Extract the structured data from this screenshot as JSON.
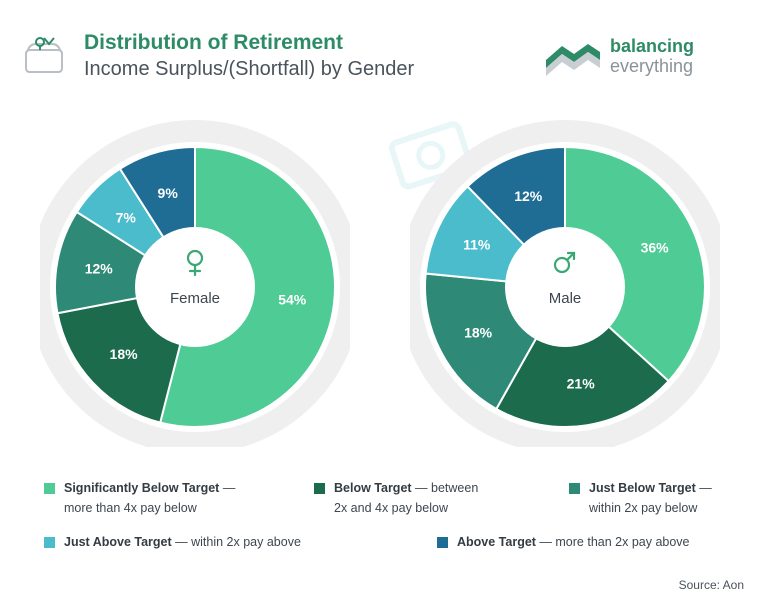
{
  "header": {
    "title": "Distribution of Retirement",
    "subtitle": "Income Surplus/(Shortfall) by Gender",
    "icon": "wallet-icon"
  },
  "brand": {
    "name": "balancing",
    "tagline": "everything",
    "logo": "balancing-everything-logo"
  },
  "colors": {
    "significantly_below": "#4fcb95",
    "below": "#1b6b4c",
    "just_below": "#2e8a77",
    "just_above": "#4bbccb",
    "above": "#1f6c94",
    "ring": "#efefef",
    "title": "#2e8b68"
  },
  "chart_data": [
    {
      "type": "pie",
      "center_label": "Female",
      "center_icon": "female-symbol-icon",
      "categories": [
        "Significantly Below Target",
        "Below Target",
        "Just Below Target",
        "Just Above Target",
        "Above Target"
      ],
      "values": [
        54,
        18,
        12,
        7,
        9
      ],
      "labels": [
        "54%",
        "18%",
        "12%",
        "7%",
        "9%"
      ]
    },
    {
      "type": "pie",
      "center_label": "Male",
      "center_icon": "male-symbol-icon",
      "categories": [
        "Significantly Below Target",
        "Below Target",
        "Just Below Target",
        "Just Above Target",
        "Above Target"
      ],
      "values": [
        36,
        21,
        18,
        11,
        12
      ],
      "labels": [
        "36%",
        "21%",
        "18%",
        "11%",
        "12%"
      ]
    }
  ],
  "legend": [
    {
      "bold": "Significantly Below Target",
      "desc_line1": " — ",
      "desc_line2": "more than 4x pay below"
    },
    {
      "bold": "Below Target",
      "desc_line1": " — between",
      "desc_line2": "2x and 4x pay below"
    },
    {
      "bold": "Just Below Target",
      "desc_line1": " — ",
      "desc_line2": "within 2x pay below"
    },
    {
      "bold": "Just Above Target",
      "desc_line1": " — within 2x pay above",
      "desc_line2": ""
    },
    {
      "bold": "Above Target",
      "desc_line1": " — more than 2x pay above",
      "desc_line2": ""
    }
  ],
  "source": "Source: Aon"
}
